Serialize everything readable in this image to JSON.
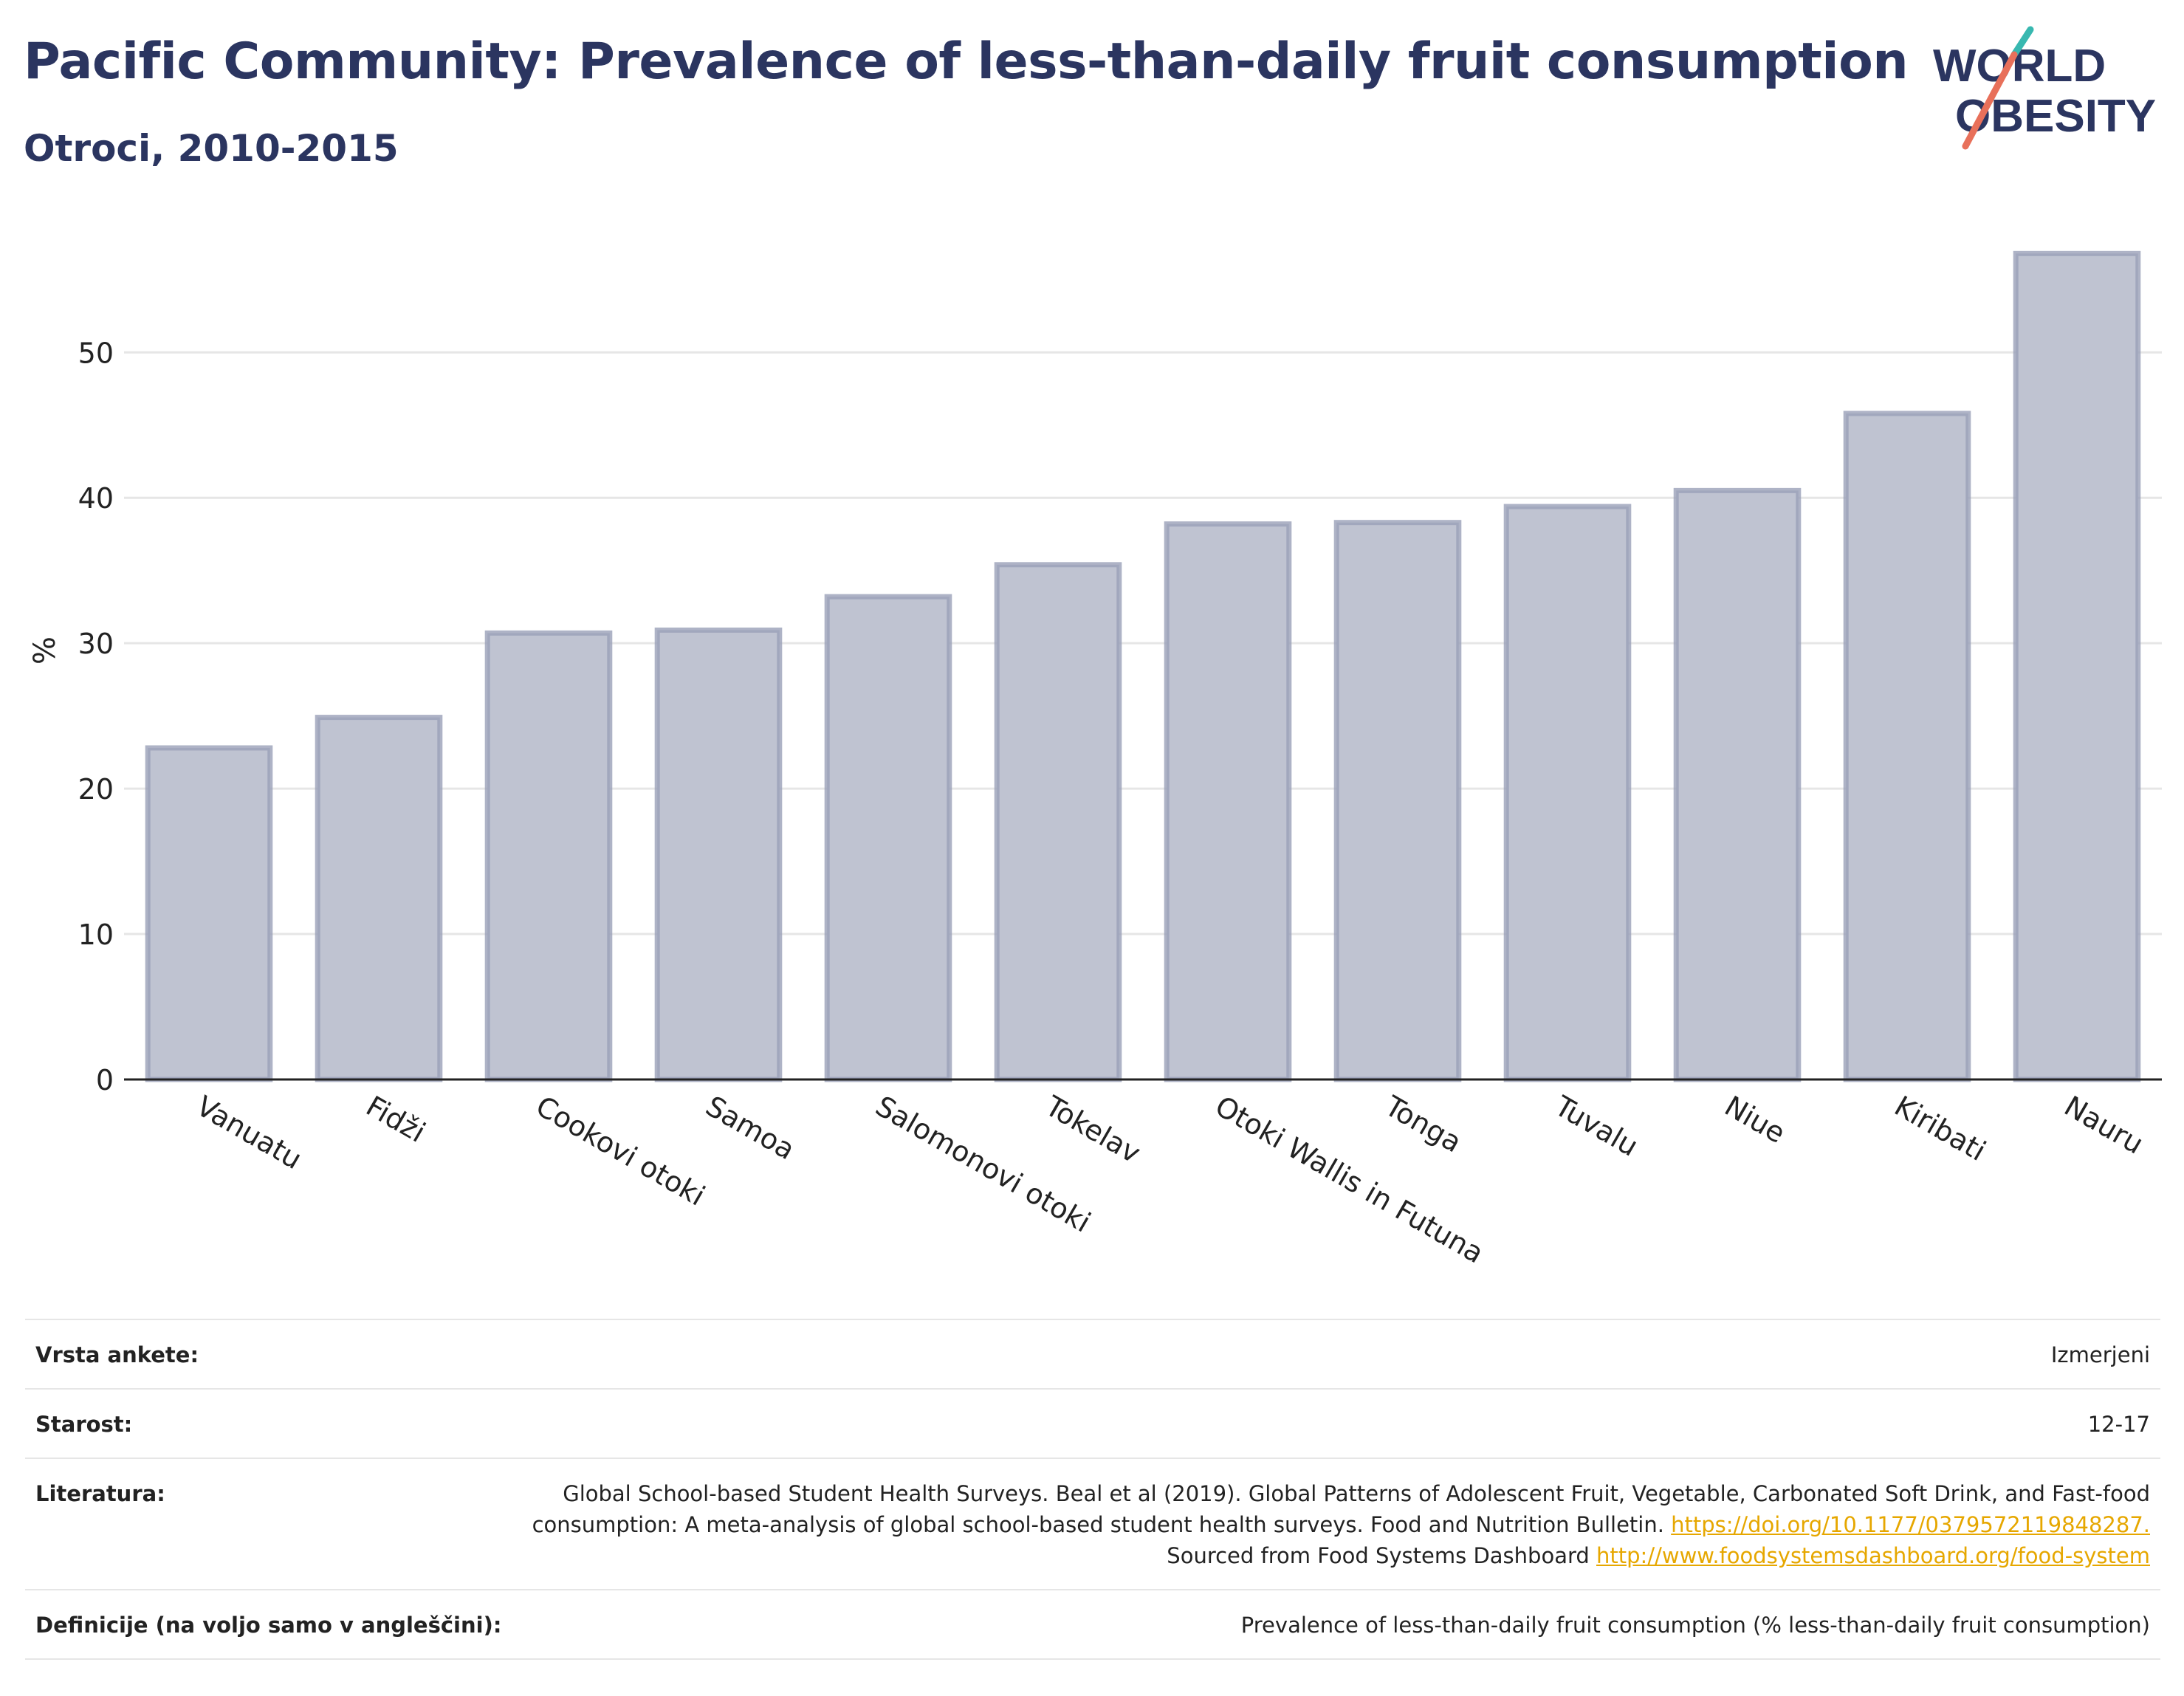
{
  "header": {
    "title": "Pacific Community: Prevalence of less-than-daily fruit consumption",
    "subtitle": "Otroci, 2010-2015",
    "logo_line1": "WORLD",
    "logo_line2": "OBESITY"
  },
  "colors": {
    "title": "#2b3560",
    "bar_fill": "#bfc3d1",
    "bar_stroke": "#9aa0b8",
    "logo_slash_teal": "#38b8b0",
    "logo_slash_red": "#e8705a",
    "link": "#e6a700"
  },
  "chart_data": {
    "type": "bar",
    "categories": [
      "Vanuatu",
      "Fidži",
      "Cookovi otoki",
      "Samoa",
      "Salomonovi otoki",
      "Tokelav",
      "Otoki Wallis in Futuna",
      "Tonga",
      "Tuvalu",
      "Niue",
      "Kiribati",
      "Nauru"
    ],
    "values": [
      22.8,
      24.9,
      30.7,
      30.9,
      33.2,
      35.4,
      38.2,
      38.3,
      39.4,
      40.5,
      45.8,
      56.8
    ],
    "title": "Pacific Community: Prevalence of less-than-daily fruit consumption",
    "subtitle": "Otroci, 2010-2015",
    "xlabel": "",
    "ylabel": "%",
    "ylim": [
      0,
      59
    ],
    "yticks": [
      0,
      10,
      20,
      30,
      40,
      50
    ],
    "grid": true,
    "legend": "none"
  },
  "meta": {
    "survey_label": "Vrsta ankete:",
    "survey_value": "Izmerjeni",
    "age_label": "Starost:",
    "age_value": "12-17",
    "lit_label": "Literatura:",
    "lit_text1": "Global School-based Student Health Surveys. Beal et al (2019). Global Patterns of Adolescent Fruit, Vegetable, Carbonated Soft Drink, and Fast-food consumption: A meta-analysis of global school-based student health surveys. Food and Nutrition Bulletin.",
    "lit_link1": "https://doi.org/10.1177/0379572119848287.",
    "lit_text2": " Sourced from Food Systems Dashboard ",
    "lit_link2": "http://www.foodsystemsdashboard.org/food-system",
    "def_label": "Definicije (na voljo samo v angleščini):",
    "def_value": "Prevalence of less-than-daily fruit consumption (% less-than-daily fruit consumption)"
  }
}
